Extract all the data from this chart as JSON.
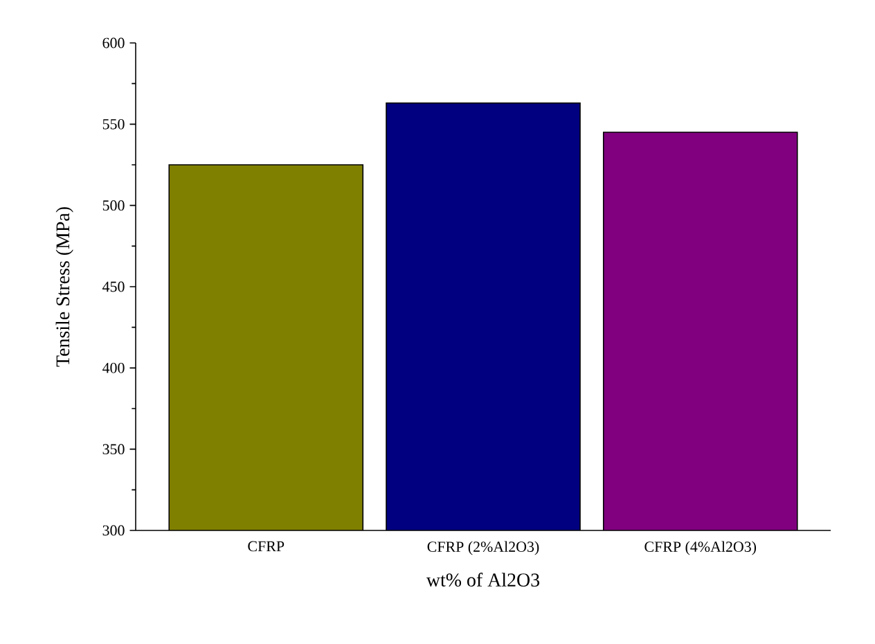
{
  "chart_data": {
    "type": "bar",
    "xlabel": "wt% of Al2O3",
    "ylabel": "Tensile Stress (MPa)",
    "categories": [
      "CFRP",
      "CFRP (2%Al2O3)",
      "CFRP (4%Al2O3)"
    ],
    "values": [
      525,
      563,
      545
    ],
    "colors": [
      "#808000",
      "#000080",
      "#800080"
    ],
    "ylim": [
      300,
      600
    ],
    "yticks": [
      300,
      350,
      400,
      450,
      500,
      550,
      600
    ]
  }
}
